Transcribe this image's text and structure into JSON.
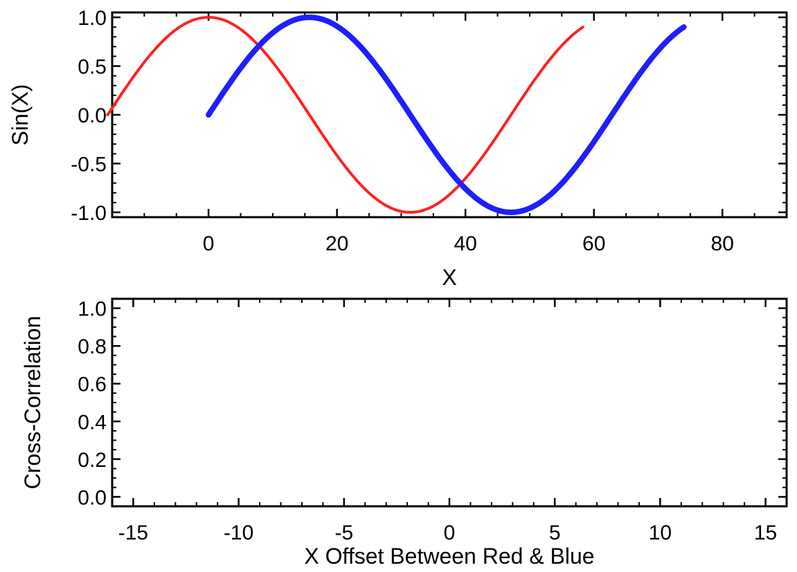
{
  "chart_data": [
    {
      "type": "line",
      "xlabel": "X",
      "ylabel": "Sin(X)",
      "xlim": [
        -15,
        90
      ],
      "ylim": [
        -1.05,
        1.05
      ],
      "x_ticks": [
        0,
        20,
        40,
        60,
        80
      ],
      "x_tick_labels": [
        "0",
        "20",
        "40",
        "60",
        "80"
      ],
      "y_ticks": [
        1.0,
        0.5,
        0.0,
        -0.5,
        -1.0
      ],
      "y_tick_labels": [
        "1.0",
        "0.5",
        "0.0",
        "-0.5",
        "-1.0"
      ],
      "series": [
        {
          "color": "#ff2020",
          "function": "sin",
          "x_start": -15.7,
          "x_end": 58.3,
          "x_phase_zero": -15.7,
          "period": 62.8,
          "amplitude": 1.0
        },
        {
          "color": "#1e1eff",
          "function": "sin",
          "x_start": 0,
          "x_end": 74,
          "x_phase_zero": 0,
          "period": 62.8,
          "amplitude": 1.0
        }
      ]
    },
    {
      "type": "line",
      "xlabel": "X Offset Between Red & Blue",
      "ylabel": "Cross-Correlation",
      "xlim": [
        -16,
        16
      ],
      "ylim": [
        -0.05,
        1.05
      ],
      "x_ticks": [
        -15,
        -10,
        -5,
        0,
        5,
        10,
        15
      ],
      "x_tick_labels": [
        "-15",
        "-10",
        "-5",
        "0",
        "5",
        "10",
        "15"
      ],
      "y_ticks": [
        1.0,
        0.8,
        0.6,
        0.4,
        0.2,
        0.0
      ],
      "y_tick_labels": [
        "1.0",
        "0.8",
        "0.6",
        "0.4",
        "0.2",
        "0.0"
      ],
      "series": []
    }
  ]
}
